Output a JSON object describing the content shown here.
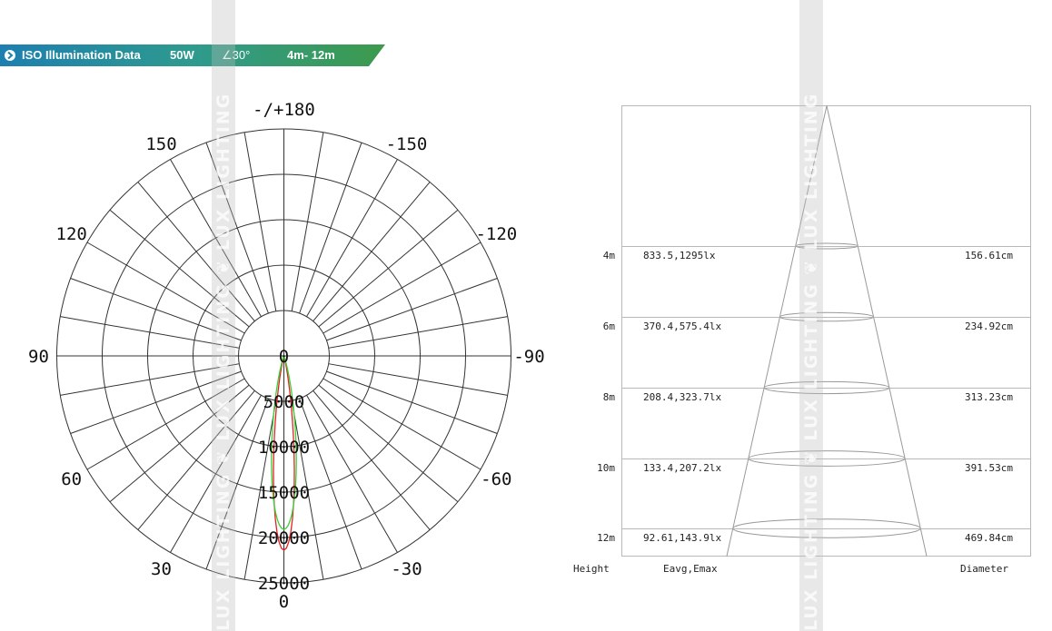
{
  "banner": {
    "label": "ISO Illumination  Data",
    "power": "50W",
    "angle": "∠30°",
    "range": "4m- 12m",
    "colors": {
      "blue": "#1c7fb0",
      "teal": "#2f9a8e",
      "green": "#3d9a4c"
    }
  },
  "watermark": {
    "text": "LUX LIGHTING  ❦  LUX LIGHTING  ❦  LUX LIGHTING"
  },
  "polar": {
    "angle_labels": [
      {
        "id": "180",
        "text": "-/+180",
        "angle": 180
      },
      {
        "id": "n150",
        "text": "-150",
        "angle": -150
      },
      {
        "id": "150",
        "text": "150",
        "angle": 150
      },
      {
        "id": "n120",
        "text": "-120",
        "angle": -120
      },
      {
        "id": "120",
        "text": "120",
        "angle": 120
      },
      {
        "id": "n90",
        "text": "-90",
        "angle": -90
      },
      {
        "id": "90",
        "text": "90",
        "angle": 90
      },
      {
        "id": "n60",
        "text": "-60",
        "angle": -60
      },
      {
        "id": "60",
        "text": "60",
        "angle": 60
      },
      {
        "id": "n30",
        "text": "-30",
        "angle": -30
      },
      {
        "id": "30",
        "text": "30",
        "angle": 30
      },
      {
        "id": "0",
        "text": "0",
        "angle": 0
      }
    ],
    "radial_labels": [
      "0",
      "5000",
      "10000",
      "15000",
      "20000",
      "25000"
    ],
    "radial_values": [
      0,
      5000,
      10000,
      15000,
      20000,
      25000
    ],
    "curves": [
      {
        "name": "red",
        "color": "#e32222",
        "peak": 21400,
        "halfwidth_deg": 6
      },
      {
        "name": "green",
        "color": "#38d138",
        "peak": 19100,
        "halfwidth_deg": 8
      }
    ]
  },
  "cone": {
    "rows": [
      {
        "height": "4m",
        "eavg_emax": "833.5,1295lx",
        "diameter": "156.61cm"
      },
      {
        "height": "6m",
        "eavg_emax": "370.4,575.4lx",
        "diameter": "234.92cm"
      },
      {
        "height": "8m",
        "eavg_emax": "208.4,323.7lx",
        "diameter": "313.23cm"
      },
      {
        "height": "10m",
        "eavg_emax": "133.4,207.2lx",
        "diameter": "391.53cm"
      },
      {
        "height": "12m",
        "eavg_emax": "92.61,143.9lx",
        "diameter": "469.84cm"
      }
    ],
    "headers": {
      "height": "Height",
      "eavg_emax": "Eavg,Emax",
      "diameter": "Diameter"
    }
  }
}
